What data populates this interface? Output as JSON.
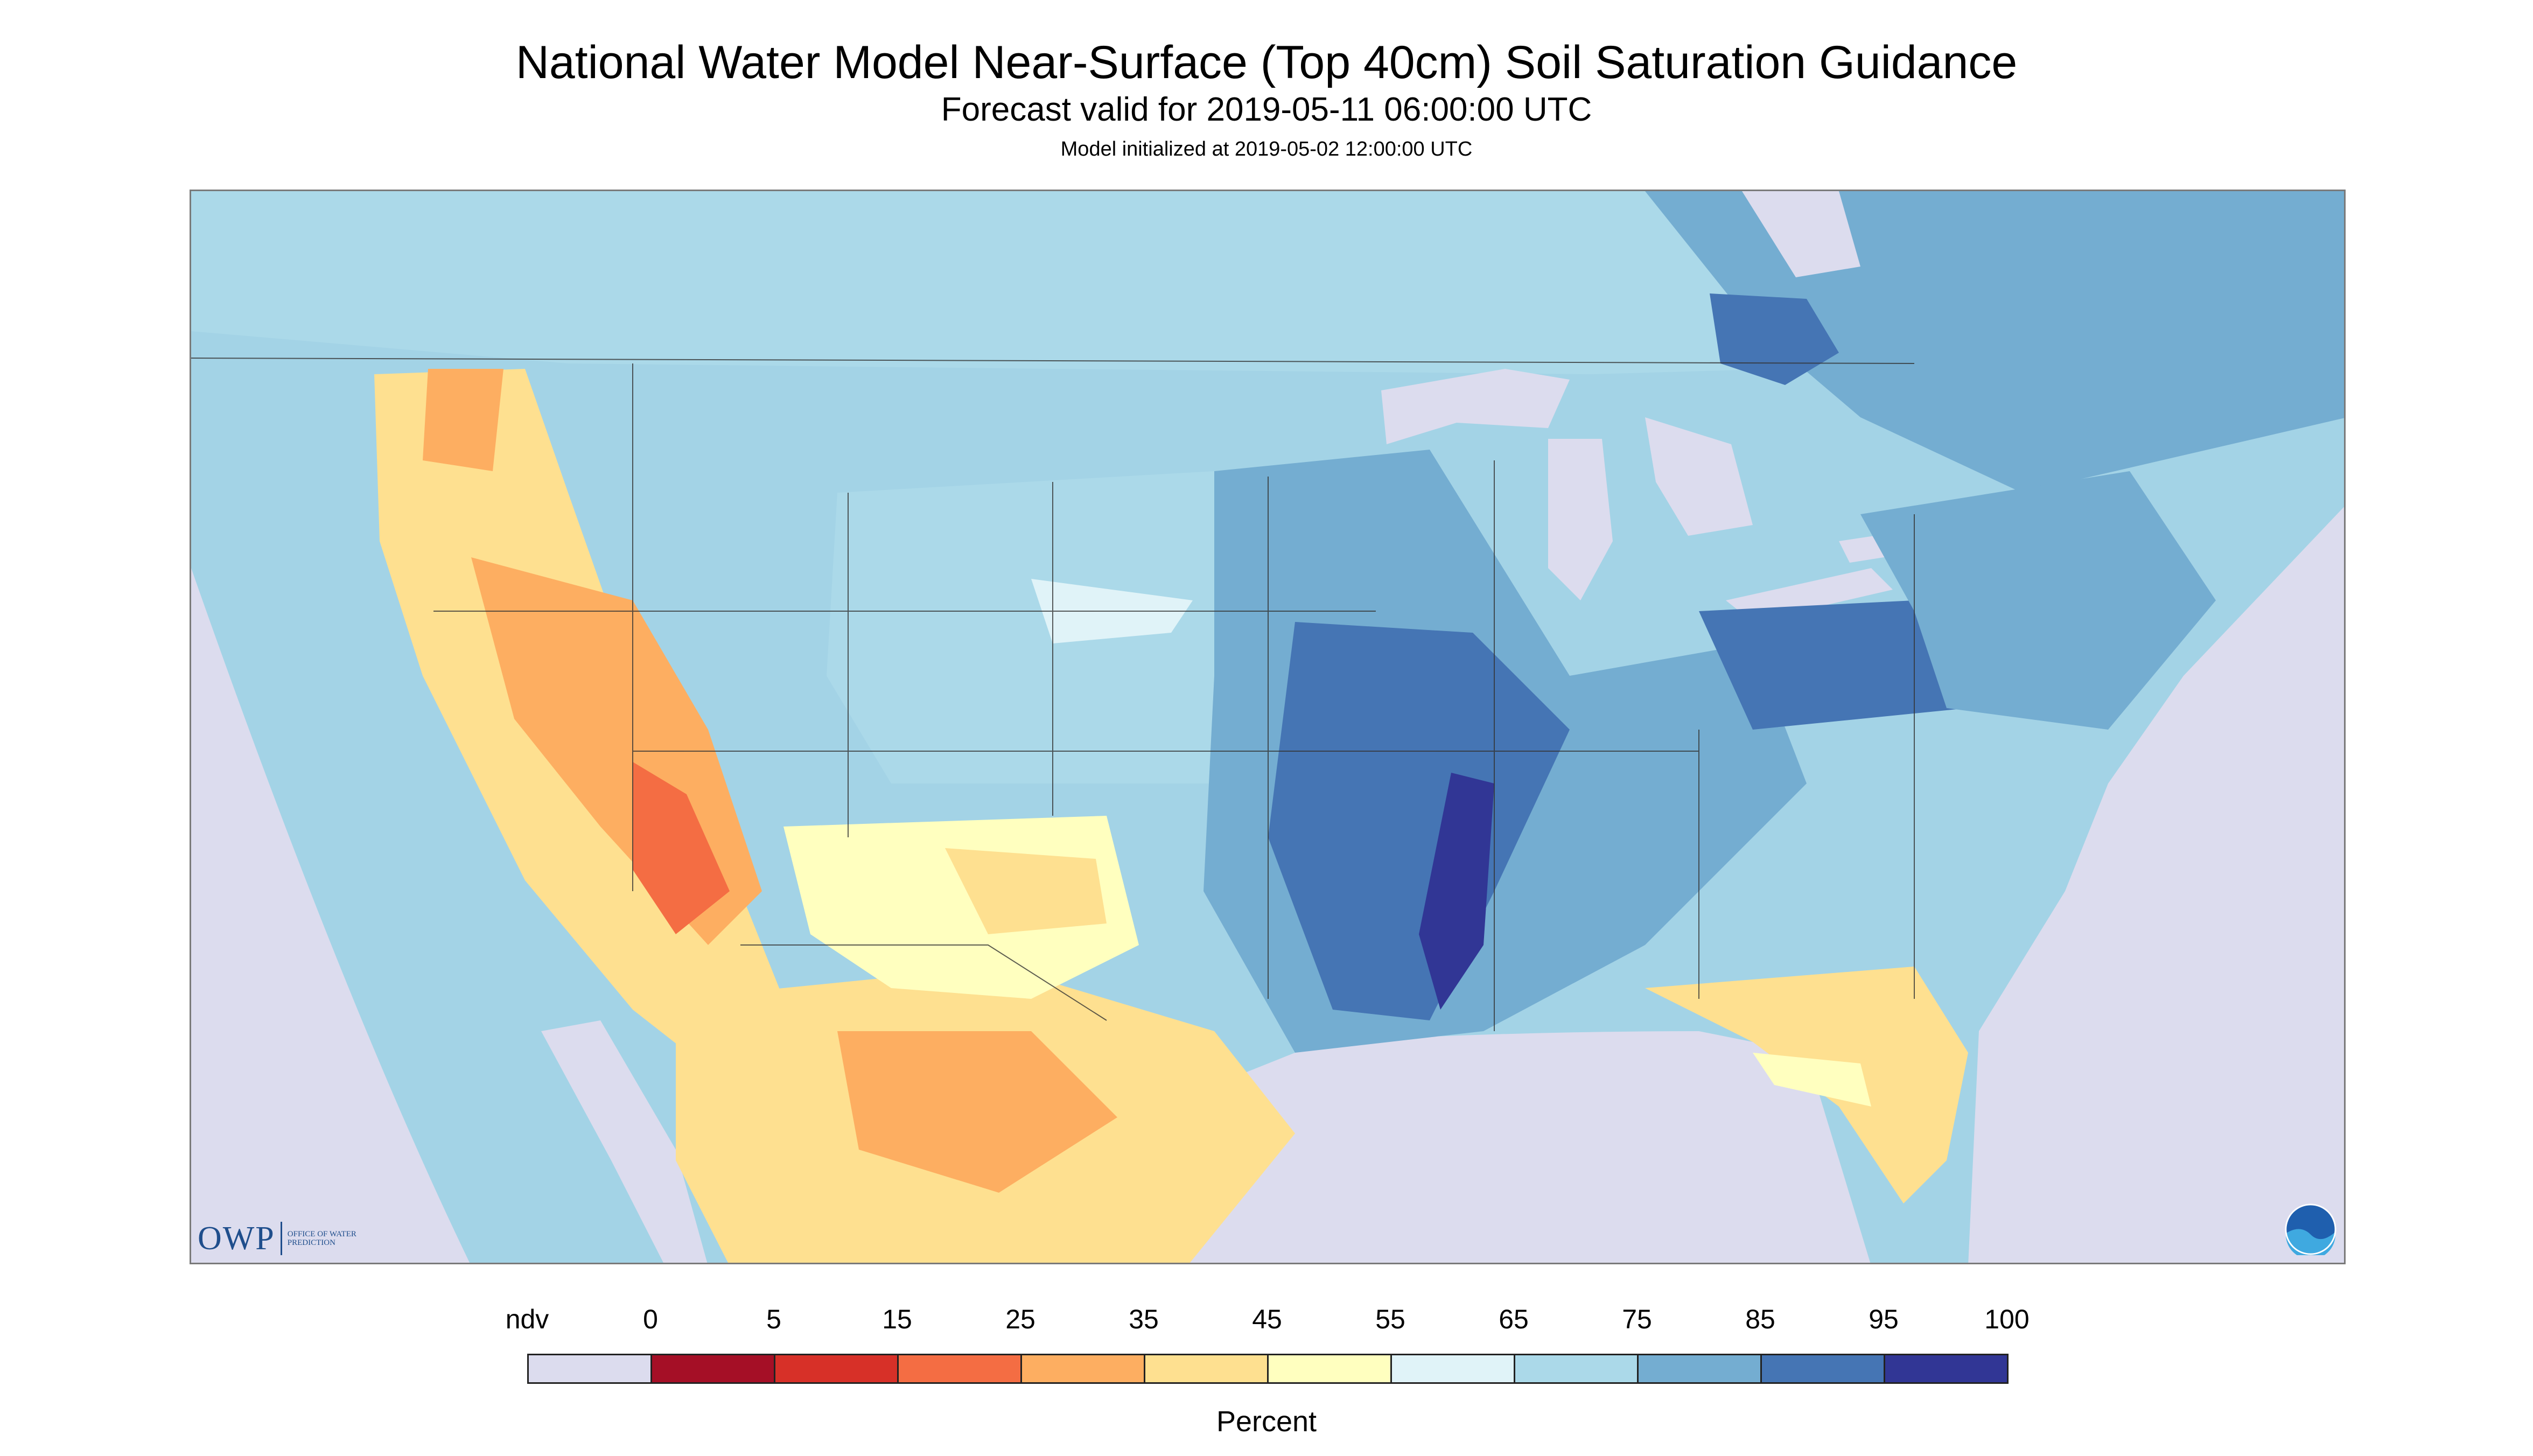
{
  "header": {
    "title": "National Water Model Near-Surface (Top 40cm) Soil Saturation Guidance",
    "subtitle": "Forecast valid for 2019-05-11 06:00:00 UTC",
    "init_line": "Model initialized at 2019-05-02 12:00:00 UTC"
  },
  "map": {
    "description_region": "CONUS",
    "water_color": "#dcdcee",
    "nodata_color": "#dcdcee",
    "logos": {
      "owp_mark": "OWP",
      "owp_text": "OFFICE OF WATER PREDICTION",
      "noaa_text": "NOAA"
    }
  },
  "legend": {
    "labels": [
      "ndv",
      "0",
      "5",
      "15",
      "25",
      "35",
      "45",
      "55",
      "65",
      "75",
      "85",
      "95",
      "100"
    ],
    "colors": [
      "#dcdcee",
      "#a50f26",
      "#d73028",
      "#f46d43",
      "#fdae61",
      "#fee090",
      "#ffffbf",
      "#e0f3f8",
      "#abd9e9",
      "#74add1",
      "#4575b4",
      "#313695"
    ],
    "unit_label": "Percent"
  }
}
